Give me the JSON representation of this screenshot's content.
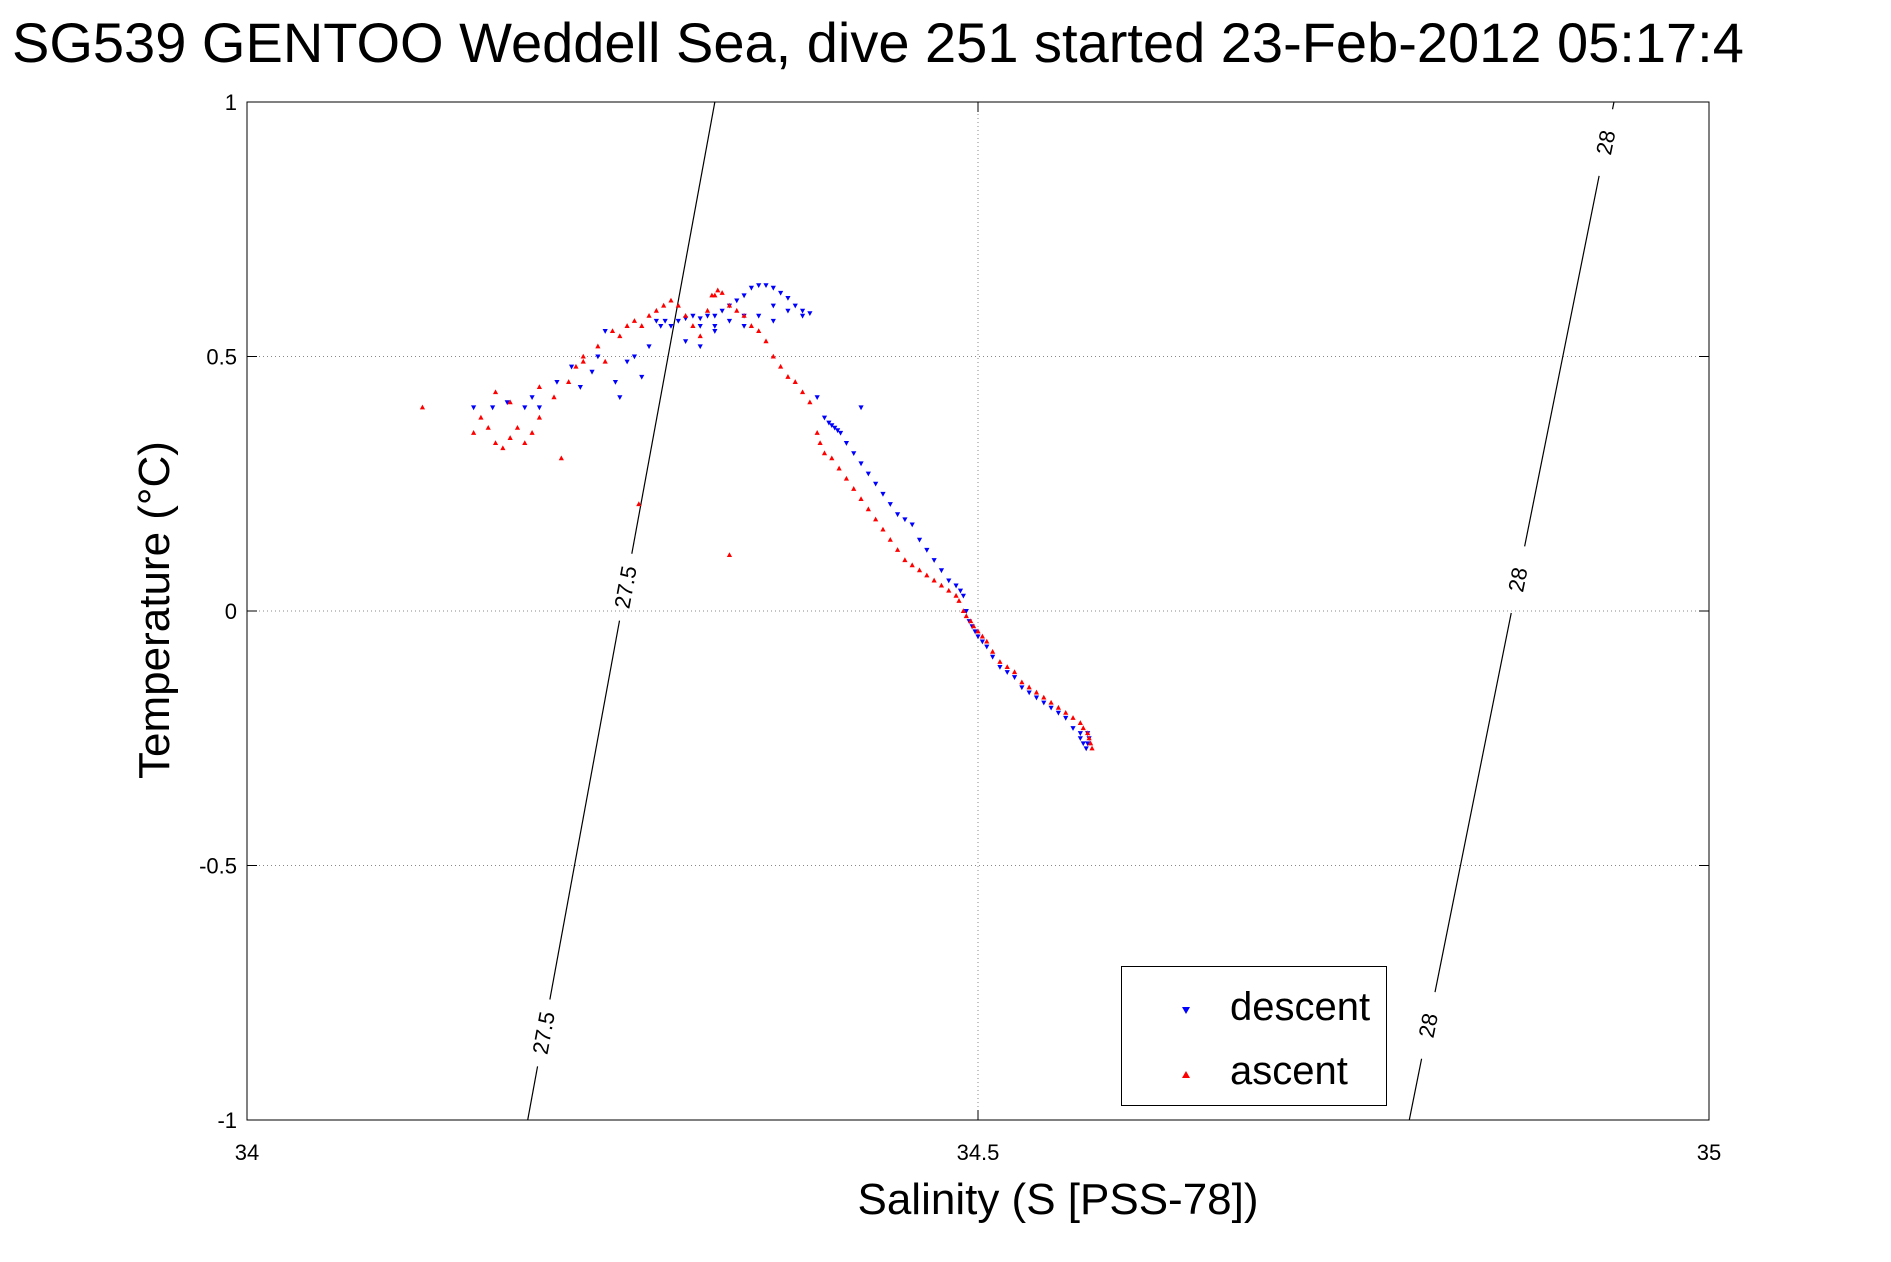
{
  "chart_data": {
    "type": "scatter",
    "title": "SG539 GENTOO Weddell Sea, dive 251 started 23-Feb-2012 05:17:4",
    "xlabel": "Salinity (S [PSS-78])",
    "ylabel": "Temperature (°C)",
    "xlim": [
      34,
      35
    ],
    "ylim": [
      -1,
      1
    ],
    "x_ticks": [
      34,
      34.5,
      35
    ],
    "x_tick_labels": [
      "34",
      "34.5",
      "35"
    ],
    "y_ticks": [
      -1,
      -0.5,
      0,
      0.5,
      1
    ],
    "y_tick_labels": [
      "-1",
      "-0.5",
      "0",
      "0.5",
      "1"
    ],
    "grid": true,
    "legend_position": "bottom-right",
    "isopycnals": [
      {
        "value": "27.5",
        "x_at_ymin": 34.192,
        "x_at_ymax": 34.32,
        "label_positions": [
          [
            34.205,
            -0.83
          ],
          [
            34.253,
            0.05
          ]
        ]
      },
      {
        "value": "28",
        "x_at_ymin": 34.795,
        "x_at_ymax": 34.935,
        "label_positions": [
          [
            34.818,
            -0.82
          ],
          [
            34.872,
            0.06
          ],
          [
            34.93,
            0.92
          ]
        ]
      }
    ],
    "series": [
      {
        "name": "descent",
        "color": "#0000ff",
        "marker": "triangle-down",
        "x": [
          34.155,
          34.168,
          34.178,
          34.19,
          34.195,
          34.2,
          34.212,
          34.222,
          34.228,
          34.236,
          34.24,
          34.245,
          34.252,
          34.255,
          34.26,
          34.265,
          34.27,
          34.275,
          34.28,
          34.283,
          34.286,
          34.29,
          34.295,
          34.3,
          34.305,
          34.31,
          34.315,
          34.32,
          34.325,
          34.33,
          34.335,
          34.34,
          34.345,
          34.35,
          34.355,
          34.36,
          34.365,
          34.37,
          34.375,
          34.38,
          34.385,
          34.3,
          34.31,
          34.32,
          34.33,
          34.34,
          34.35,
          34.36,
          34.31,
          34.32,
          34.34,
          34.36,
          34.37,
          34.38,
          34.39,
          34.395,
          34.398,
          34.4,
          34.402,
          34.404,
          34.406,
          34.41,
          34.415,
          34.42,
          34.425,
          34.43,
          34.435,
          34.44,
          34.445,
          34.45,
          34.455,
          34.46,
          34.465,
          34.47,
          34.475,
          34.48,
          34.485,
          34.488,
          34.49,
          34.492,
          34.494,
          34.496,
          34.498,
          34.5,
          34.503,
          34.506,
          34.51,
          34.515,
          34.52,
          34.525,
          34.53,
          34.535,
          34.54,
          34.545,
          34.55,
          34.555,
          34.56,
          34.565,
          34.57,
          34.57,
          34.572,
          34.574,
          34.575,
          34.576,
          34.575,
          34.42
        ],
        "y": [
          0.4,
          0.4,
          0.41,
          0.4,
          0.42,
          0.4,
          0.45,
          0.48,
          0.44,
          0.47,
          0.5,
          0.55,
          0.45,
          0.42,
          0.49,
          0.5,
          0.46,
          0.52,
          0.57,
          0.56,
          0.57,
          0.56,
          0.57,
          0.575,
          0.58,
          0.575,
          0.58,
          0.58,
          0.59,
          0.6,
          0.61,
          0.62,
          0.635,
          0.64,
          0.64,
          0.635,
          0.625,
          0.615,
          0.6,
          0.59,
          0.585,
          0.53,
          0.52,
          0.55,
          0.57,
          0.56,
          0.58,
          0.6,
          0.56,
          0.56,
          0.58,
          0.57,
          0.59,
          0.58,
          0.42,
          0.38,
          0.37,
          0.365,
          0.36,
          0.355,
          0.35,
          0.33,
          0.31,
          0.29,
          0.27,
          0.25,
          0.23,
          0.21,
          0.19,
          0.18,
          0.17,
          0.14,
          0.12,
          0.1,
          0.08,
          0.06,
          0.05,
          0.04,
          0.03,
          0.0,
          -0.02,
          -0.03,
          -0.04,
          -0.05,
          -0.06,
          -0.07,
          -0.09,
          -0.11,
          -0.12,
          -0.13,
          -0.15,
          -0.16,
          -0.17,
          -0.18,
          -0.19,
          -0.2,
          -0.21,
          -0.23,
          -0.24,
          -0.25,
          -0.26,
          -0.27,
          -0.26,
          -0.25,
          -0.24,
          0.4
        ]
      },
      {
        "name": "ascent",
        "color": "#ff0000",
        "marker": "triangle-up",
        "x": [
          34.12,
          34.155,
          34.16,
          34.165,
          34.17,
          34.175,
          34.18,
          34.185,
          34.19,
          34.195,
          34.2,
          34.21,
          34.22,
          34.225,
          34.23,
          34.24,
          34.245,
          34.25,
          34.255,
          34.26,
          34.265,
          34.27,
          34.275,
          34.28,
          34.285,
          34.29,
          34.295,
          34.3,
          34.305,
          34.31,
          34.315,
          34.318,
          34.32,
          34.322,
          34.325,
          34.33,
          34.335,
          34.34,
          34.345,
          34.35,
          34.355,
          34.36,
          34.365,
          34.37,
          34.375,
          34.38,
          34.385,
          34.39,
          34.392,
          34.395,
          34.4,
          34.405,
          34.41,
          34.415,
          34.42,
          34.425,
          34.43,
          34.435,
          34.44,
          34.445,
          34.45,
          34.455,
          34.46,
          34.465,
          34.47,
          34.475,
          34.48,
          34.485,
          34.487,
          34.49,
          34.492,
          34.495,
          34.497,
          34.5,
          34.503,
          34.506,
          34.51,
          34.515,
          34.52,
          34.525,
          34.53,
          34.535,
          34.54,
          34.545,
          34.55,
          34.555,
          34.56,
          34.565,
          34.57,
          34.572,
          34.575,
          34.576,
          34.577,
          34.578,
          34.33,
          34.268,
          34.17,
          34.18,
          34.2,
          34.215,
          34.23
        ],
        "y": [
          0.4,
          0.35,
          0.38,
          0.36,
          0.33,
          0.32,
          0.34,
          0.36,
          0.33,
          0.35,
          0.38,
          0.42,
          0.45,
          0.48,
          0.5,
          0.52,
          0.49,
          0.55,
          0.54,
          0.56,
          0.57,
          0.56,
          0.58,
          0.59,
          0.6,
          0.61,
          0.6,
          0.58,
          0.56,
          0.54,
          0.59,
          0.62,
          0.62,
          0.63,
          0.625,
          0.6,
          0.59,
          0.58,
          0.56,
          0.55,
          0.53,
          0.5,
          0.48,
          0.46,
          0.45,
          0.43,
          0.41,
          0.35,
          0.33,
          0.31,
          0.3,
          0.28,
          0.26,
          0.24,
          0.22,
          0.2,
          0.18,
          0.16,
          0.14,
          0.12,
          0.1,
          0.09,
          0.08,
          0.07,
          0.06,
          0.05,
          0.04,
          0.03,
          0.02,
          0.0,
          -0.01,
          -0.02,
          -0.03,
          -0.04,
          -0.05,
          -0.06,
          -0.08,
          -0.1,
          -0.11,
          -0.12,
          -0.14,
          -0.15,
          -0.16,
          -0.17,
          -0.18,
          -0.19,
          -0.2,
          -0.21,
          -0.22,
          -0.23,
          -0.24,
          -0.25,
          -0.26,
          -0.27,
          0.11,
          0.21,
          0.43,
          0.41,
          0.44,
          0.3,
          0.49
        ]
      }
    ]
  }
}
